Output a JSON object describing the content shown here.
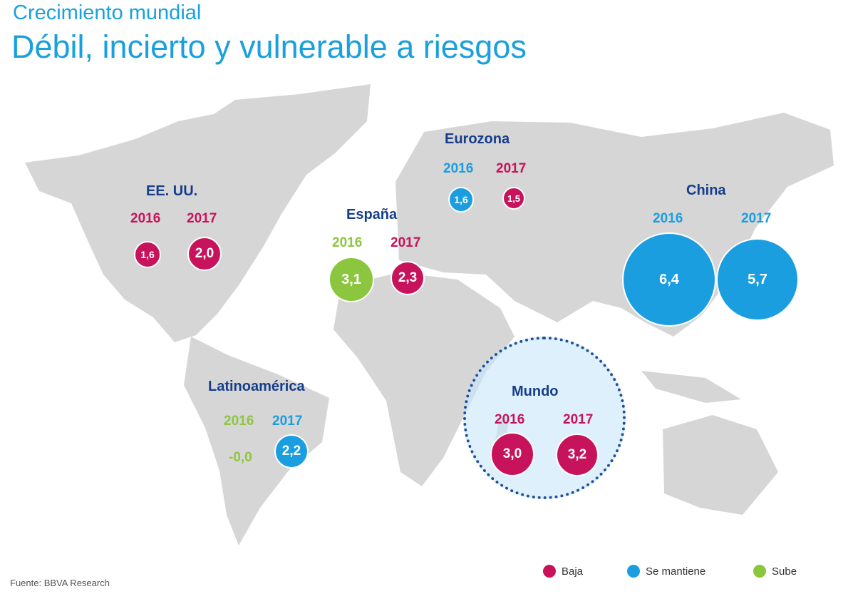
{
  "header": {
    "subtitle": "Crecimiento mundial",
    "title": "Débil, incierto y vulnerable a riesgos"
  },
  "colors": {
    "baja": "#c7135b",
    "se_mantiene": "#1a9ee0",
    "sube": "#8cc63f",
    "map_land": "#d6d6d6",
    "region_label": "#163d8a"
  },
  "regions": {
    "eeuu": {
      "name": "EE. UU.",
      "y2016": "2016",
      "v2016": "1,6",
      "s2016": "baja",
      "y2017": "2017",
      "v2017": "2,0",
      "s2017": "baja"
    },
    "espana": {
      "name": "España",
      "y2016": "2016",
      "v2016": "3,1",
      "s2016": "sube",
      "y2017": "2017",
      "v2017": "2,3",
      "s2017": "baja"
    },
    "eurozona": {
      "name": "Eurozona",
      "y2016": "2016",
      "v2016": "1,6",
      "s2016": "se mantiene",
      "y2017": "2017",
      "v2017": "1,5",
      "s2017": "baja"
    },
    "china": {
      "name": "China",
      "y2016": "2016",
      "v2016": "6,4",
      "s2016": "se mantiene",
      "y2017": "2017",
      "v2017": "5,7",
      "s2017": "se mantiene"
    },
    "latam": {
      "name": "Latinoamérica",
      "y2016": "2016",
      "v2016": "-0,0",
      "s2016": "sube",
      "y2017": "2017",
      "v2017": "2,2",
      "s2017": "se mantiene"
    },
    "mundo": {
      "name": "Mundo",
      "y2016": "2016",
      "v2016": "3,0",
      "s2016": "baja",
      "y2017": "2017",
      "v2017": "3,2",
      "s2017": "baja"
    }
  },
  "legend": [
    {
      "label": "Baja"
    },
    {
      "label": "Se mantiene"
    },
    {
      "label": "Sube"
    }
  ],
  "source": "Fuente: BBVA Research"
}
